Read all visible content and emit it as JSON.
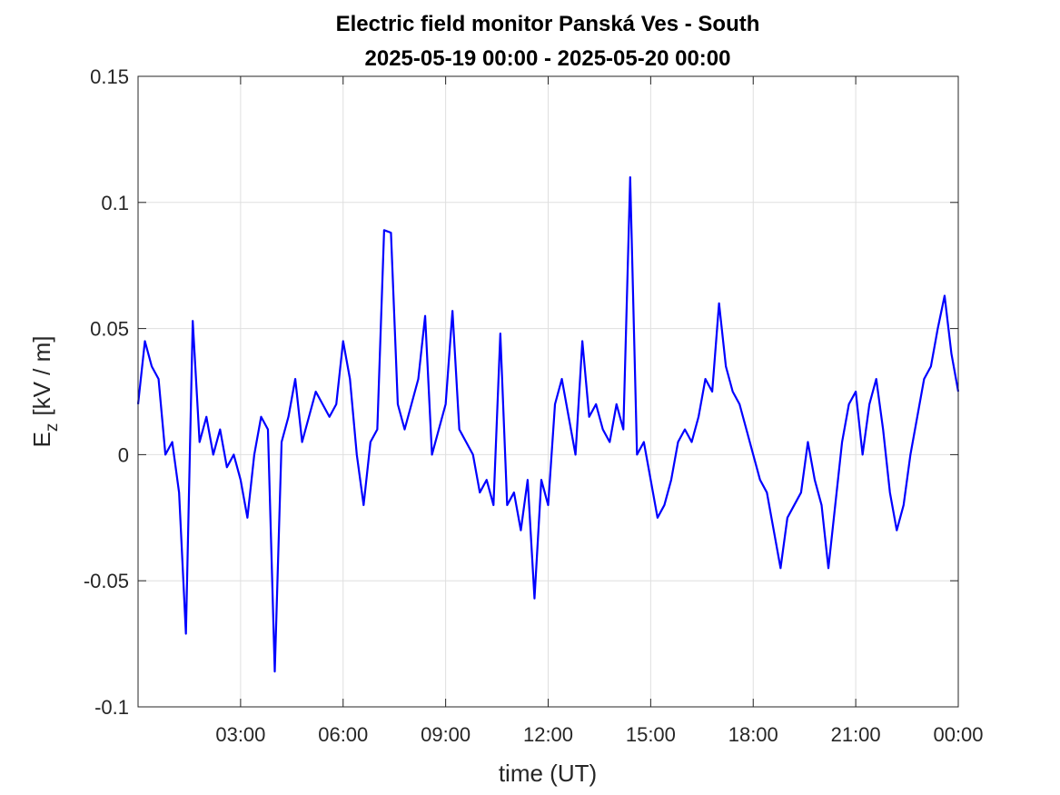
{
  "chart_data": {
    "type": "line",
    "title": "Electric field monitor Panská Ves - South",
    "subtitle": "2025-05-19 00:00 - 2025-05-20 00:00",
    "xlabel": "time (UT)",
    "ylabel": {
      "symbol": "E",
      "subscript": "z",
      "unit": "[kV / m]"
    },
    "x": [
      0,
      0.2,
      0.4,
      0.6,
      0.8,
      1,
      1.2,
      1.4,
      1.6,
      1.8,
      2,
      2.2,
      2.4,
      2.6,
      2.8,
      3,
      3.2,
      3.4,
      3.6,
      3.8,
      4,
      4.2,
      4.4,
      4.6,
      4.8,
      5,
      5.2,
      5.4,
      5.6,
      5.8,
      6,
      6.2,
      6.4,
      6.6,
      6.8,
      7,
      7.2,
      7.4,
      7.6,
      7.8,
      8,
      8.2,
      8.4,
      8.6,
      8.8,
      9,
      9.2,
      9.4,
      9.6,
      9.8,
      10,
      10.2,
      10.4,
      10.6,
      10.8,
      11,
      11.2,
      11.4,
      11.6,
      11.8,
      12,
      12.2,
      12.4,
      12.6,
      12.8,
      13,
      13.2,
      13.4,
      13.6,
      13.8,
      14,
      14.2,
      14.4,
      14.6,
      14.8,
      15,
      15.2,
      15.4,
      15.6,
      15.8,
      16,
      16.2,
      16.4,
      16.6,
      16.8,
      17,
      17.2,
      17.4,
      17.6,
      17.8,
      18,
      18.2,
      18.4,
      18.6,
      18.8,
      19,
      19.2,
      19.4,
      19.6,
      19.8,
      20,
      20.2,
      20.4,
      20.6,
      20.8,
      21,
      21.2,
      21.4,
      21.6,
      21.8,
      22,
      22.2,
      22.4,
      22.6,
      22.8,
      23,
      23.2,
      23.4,
      23.6,
      23.8,
      24
    ],
    "series": [
      {
        "color": "#0000ff",
        "values": [
          0.02,
          0.045,
          0.035,
          0.03,
          0.0,
          0.005,
          -0.015,
          -0.071,
          0.053,
          0.005,
          0.015,
          0.0,
          0.01,
          -0.005,
          0.0,
          -0.01,
          -0.025,
          0.0,
          0.015,
          0.01,
          -0.086,
          0.005,
          0.015,
          0.03,
          0.005,
          0.015,
          0.025,
          0.02,
          0.015,
          0.02,
          0.045,
          0.03,
          0.0,
          -0.02,
          0.005,
          0.01,
          0.089,
          0.088,
          0.02,
          0.01,
          0.02,
          0.03,
          0.055,
          0.0,
          0.01,
          0.02,
          0.057,
          0.01,
          0.005,
          0.0,
          -0.015,
          -0.01,
          -0.02,
          0.048,
          -0.02,
          -0.015,
          -0.03,
          -0.01,
          -0.057,
          -0.01,
          -0.02,
          0.02,
          0.03,
          0.015,
          0.0,
          0.045,
          0.015,
          0.02,
          0.01,
          0.005,
          0.02,
          0.01,
          0.11,
          0.0,
          0.005,
          -0.01,
          -0.025,
          -0.02,
          -0.01,
          0.005,
          0.01,
          0.005,
          0.015,
          0.03,
          0.025,
          0.06,
          0.035,
          0.025,
          0.02,
          0.01,
          0.0,
          -0.01,
          -0.015,
          -0.03,
          -0.045,
          -0.025,
          -0.02,
          -0.015,
          0.005,
          -0.01,
          -0.02,
          -0.045,
          -0.02,
          0.005,
          0.02,
          0.025,
          0.0,
          0.02,
          0.03,
          0.01,
          -0.015,
          -0.03,
          -0.02,
          0.0,
          0.015,
          0.03,
          0.035,
          0.05,
          0.063,
          0.04,
          0.025
        ]
      }
    ],
    "xlim": [
      0,
      24
    ],
    "xticks": [
      {
        "value": 3,
        "label": "03:00"
      },
      {
        "value": 6,
        "label": "06:00"
      },
      {
        "value": 9,
        "label": "09:00"
      },
      {
        "value": 12,
        "label": "12:00"
      },
      {
        "value": 15,
        "label": "15:00"
      },
      {
        "value": 18,
        "label": "18:00"
      },
      {
        "value": 21,
        "label": "21:00"
      },
      {
        "value": 24,
        "label": "00:00"
      }
    ],
    "ylim": [
      -0.1,
      0.15
    ],
    "yticks": [
      -0.1,
      -0.05,
      0,
      0.05,
      0.1,
      0.15
    ],
    "grid": true
  }
}
